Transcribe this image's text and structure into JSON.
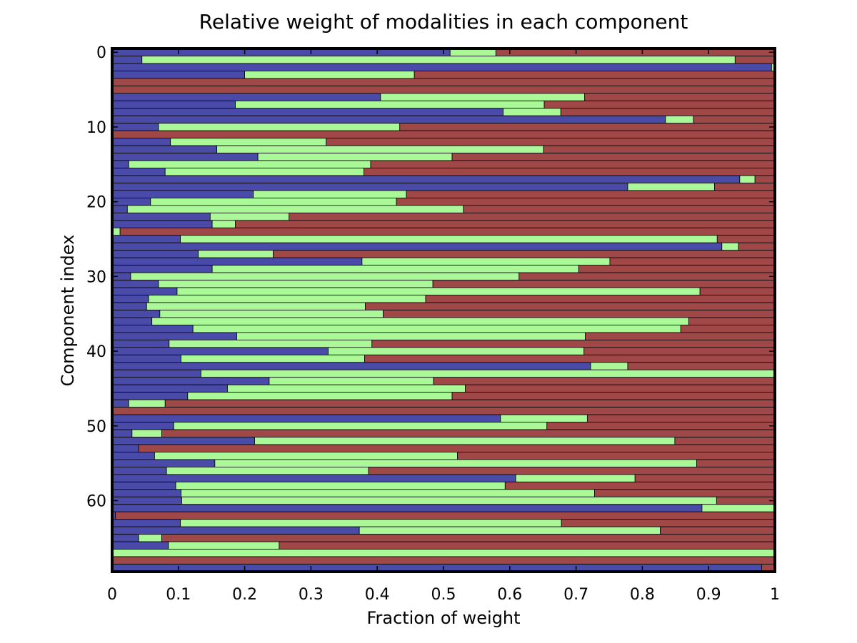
{
  "chart_data": {
    "type": "bar",
    "orientation": "horizontal",
    "stacked": true,
    "title": "Relative weight of modalities in each component",
    "xlabel": "Fraction of weight",
    "ylabel": "Component index",
    "xlim": [
      0,
      1
    ],
    "ylim": [
      0,
      69
    ],
    "y_inverted": true,
    "grid": false,
    "legend": "none",
    "x_ticks": [
      "0",
      "0.1",
      "0.2",
      "0.3",
      "0.4",
      "0.5",
      "0.6",
      "0.7",
      "0.8",
      "0.9",
      "1"
    ],
    "x_tick_values": [
      0,
      0.1,
      0.2,
      0.3,
      0.4,
      0.5,
      0.6,
      0.7,
      0.8,
      0.9,
      1
    ],
    "y_ticks": [
      "0",
      "10",
      "20",
      "30",
      "40",
      "50",
      "60"
    ],
    "y_tick_values": [
      0,
      10,
      20,
      30,
      40,
      50,
      60
    ],
    "colors": [
      "#4a4aa8",
      "#aaf898",
      "#a04848"
    ],
    "categories": [
      0,
      1,
      2,
      3,
      4,
      5,
      6,
      7,
      8,
      9,
      10,
      11,
      12,
      13,
      14,
      15,
      16,
      17,
      18,
      19,
      20,
      21,
      22,
      23,
      24,
      25,
      26,
      27,
      28,
      29,
      30,
      31,
      32,
      33,
      34,
      35,
      36,
      37,
      38,
      39,
      40,
      41,
      42,
      43,
      44,
      45,
      46,
      47,
      48,
      49,
      50,
      51,
      52,
      53,
      54,
      55,
      56,
      57,
      58,
      59,
      60,
      61,
      62,
      63,
      64,
      65,
      66,
      67,
      68,
      69
    ],
    "series": [
      {
        "values": [
          0.51,
          0.045,
          0.995,
          0.2,
          0,
          0,
          0.405,
          0.186,
          0.59,
          0.835,
          0.07,
          0,
          0.088,
          0.158,
          0.22,
          0.025,
          0.08,
          0.947,
          0.778,
          0.213,
          0.058,
          0.023,
          0.148,
          0.151,
          0,
          0.103,
          0.92,
          0.13,
          0.377,
          0.151,
          0.028,
          0.07,
          0.098,
          0.055,
          0.052,
          0.072,
          0.06,
          0.122,
          0.188,
          0.086,
          0.326,
          0.104,
          0.722,
          0.134,
          0.237,
          0.174,
          0.114,
          0.025,
          0,
          0.586,
          0.093,
          0.03,
          0.215,
          0.04,
          0.064,
          0.155,
          0.082,
          0.609,
          0.096,
          0.104,
          0.105,
          0.89,
          0.005,
          0.103,
          0.373,
          0.04,
          0.085,
          0,
          0,
          0.98
        ]
      },
      {
        "values": [
          0.069,
          0.895,
          0.005,
          0.256,
          0,
          0,
          0.308,
          0.466,
          0.087,
          0.042,
          0.364,
          0,
          0.235,
          0.493,
          0.293,
          0.365,
          0.3,
          0.023,
          0.131,
          0.231,
          0.371,
          0.507,
          0.119,
          0.035,
          0.012,
          0.81,
          0.025,
          0.113,
          0.374,
          0.553,
          0.586,
          0.414,
          0.789,
          0.418,
          0.33,
          0.337,
          0.81,
          0.736,
          0.526,
          0.306,
          0.386,
          0.277,
          0.056,
          0.866,
          0.248,
          0.359,
          0.399,
          0.055,
          0,
          0.131,
          0.563,
          0.045,
          0.634,
          0,
          0.457,
          0.727,
          0.305,
          0.18,
          0.497,
          0.624,
          0.807,
          0.11,
          0,
          0.575,
          0.454,
          0.035,
          0.167,
          1,
          0,
          0
        ]
      },
      {
        "values": [
          0.421,
          0.06,
          0,
          0.544,
          1,
          1,
          0.287,
          0.348,
          0.323,
          0.123,
          0.566,
          1,
          0.677,
          0.349,
          0.487,
          0.61,
          0.62,
          0.03,
          0.091,
          0.556,
          0.571,
          0.47,
          0.733,
          0.814,
          0.988,
          0.087,
          0.055,
          0.757,
          0.249,
          0.296,
          0.386,
          0.516,
          0.113,
          0.527,
          0.618,
          0.591,
          0.13,
          0.142,
          0.286,
          0.608,
          0.288,
          0.619,
          0.222,
          0,
          0.515,
          0.467,
          0.487,
          0.92,
          1,
          0.283,
          0.344,
          0.925,
          0.151,
          0.96,
          0.479,
          0.118,
          0.613,
          0.211,
          0.407,
          0.272,
          0.088,
          0,
          0.995,
          0.322,
          0.173,
          0.925,
          0.748,
          0,
          1,
          0.02
        ]
      }
    ]
  }
}
